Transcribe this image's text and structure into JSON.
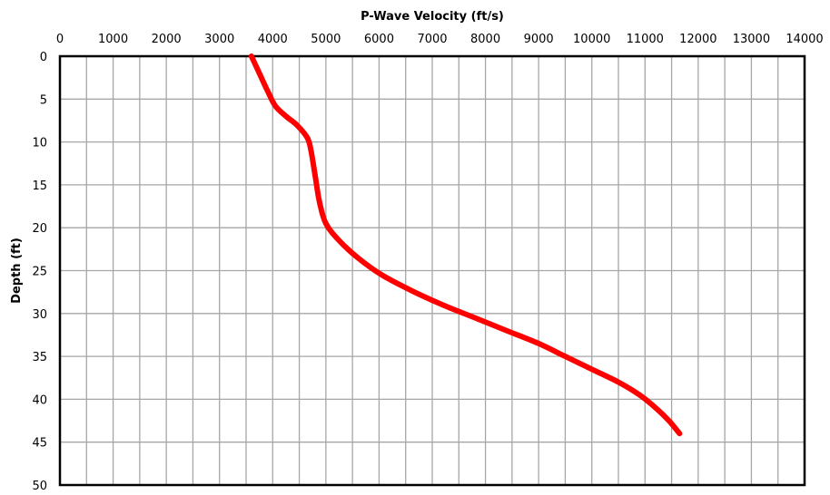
{
  "chart_data": {
    "type": "line",
    "title": "",
    "xlabel": "P-Wave Velocity (ft/s)",
    "ylabel": "Depth (ft)",
    "xlim": [
      0,
      14000
    ],
    "ylim": [
      0,
      50
    ],
    "y_inverted": true,
    "x_axis_position": "top",
    "x_major_ticks": [
      0,
      1000,
      2000,
      3000,
      4000,
      5000,
      6000,
      7000,
      8000,
      9000,
      10000,
      11000,
      12000,
      13000,
      14000
    ],
    "x_tick_labels": [
      "0",
      "1000",
      "2000",
      "3000",
      "4000",
      "5000",
      "6000",
      "7000",
      "8000",
      "9000",
      "10000",
      "11000",
      "12000",
      "13000",
      "14000"
    ],
    "x_grid_step": 500,
    "y_major_ticks": [
      0,
      5,
      10,
      15,
      20,
      25,
      30,
      35,
      40,
      45,
      50
    ],
    "y_tick_labels": [
      "0",
      "5",
      "10",
      "15",
      "20",
      "25",
      "30",
      "35",
      "40",
      "45",
      "50"
    ],
    "grid": true,
    "legend": "none",
    "series": [
      {
        "color": "#ff0000",
        "points": [
          {
            "x": 3600,
            "y": 0
          },
          {
            "x": 3750,
            "y": 2
          },
          {
            "x": 3900,
            "y": 4
          },
          {
            "x": 4050,
            "y": 5.8
          },
          {
            "x": 4250,
            "y": 7
          },
          {
            "x": 4450,
            "y": 8
          },
          {
            "x": 4650,
            "y": 9.5
          },
          {
            "x": 4720,
            "y": 11
          },
          {
            "x": 4800,
            "y": 14
          },
          {
            "x": 4880,
            "y": 17
          },
          {
            "x": 5000,
            "y": 19.5
          },
          {
            "x": 5250,
            "y": 21.5
          },
          {
            "x": 5600,
            "y": 23.5
          },
          {
            "x": 6050,
            "y": 25.5
          },
          {
            "x": 6600,
            "y": 27.3
          },
          {
            "x": 7200,
            "y": 29
          },
          {
            "x": 7800,
            "y": 30.5
          },
          {
            "x": 8400,
            "y": 32
          },
          {
            "x": 9000,
            "y": 33.5
          },
          {
            "x": 9500,
            "y": 35
          },
          {
            "x": 10000,
            "y": 36.5
          },
          {
            "x": 10500,
            "y": 38
          },
          {
            "x": 10900,
            "y": 39.5
          },
          {
            "x": 11200,
            "y": 41
          },
          {
            "x": 11450,
            "y": 42.5
          },
          {
            "x": 11650,
            "y": 44
          }
        ]
      }
    ]
  }
}
